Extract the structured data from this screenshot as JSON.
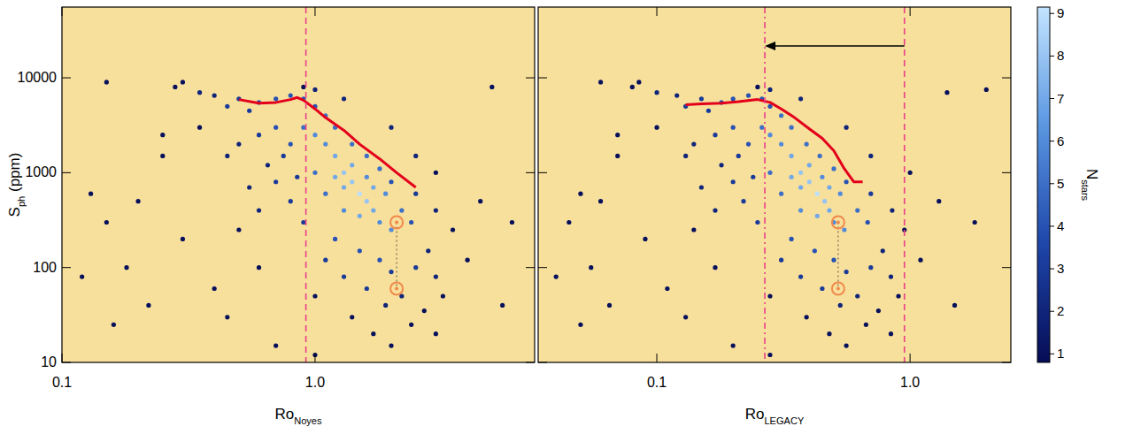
{
  "chart_data": [
    {
      "type": "scatter",
      "log": true,
      "tick_labels": true,
      "xlabel": {
        "main": "Ro",
        "sub": "Noyes"
      },
      "ylabel": {
        "main": "S",
        "sub": "ph",
        "rest": " (ppm)"
      },
      "xlim": [
        0.1,
        7.37
      ],
      "ylim": [
        10,
        55700
      ],
      "xticks": [
        {
          "value": 0.1,
          "label": "0.1"
        },
        {
          "value": 1,
          "label": "1.0"
        }
      ],
      "yticks": [
        10,
        100,
        1000,
        10000
      ],
      "series": [
        {
          "type": "scatter",
          "marker": "dot",
          "x": [
            0.35,
            0.4,
            0.45,
            0.5,
            0.55,
            0.6,
            0.7,
            0.8,
            0.9,
            1.0,
            1.1,
            1.2,
            1.4,
            1.6,
            1.8,
            2.0,
            2.5,
            3.0,
            1.2,
            1.3,
            1.4,
            1.5,
            1.3,
            1.6,
            1.7,
            1.5,
            1.8,
            2.0,
            1.1,
            1.0,
            0.9,
            1.2,
            1.4,
            1.6,
            1.9,
            2.2,
            2.4,
            1.7,
            1.3,
            1.1,
            1.0,
            0.8,
            0.7,
            0.6,
            0.5,
            0.45,
            1.2,
            1.5,
            1.8,
            2.0,
            2.5,
            1.3,
            1.6,
            2.2,
            1.9,
            2.8,
            3.0,
            1.4,
            2.4,
            1.7,
            1.1,
            0.9,
            0.8,
            0.7,
            0.6,
            0.5,
            3.5,
            4.0,
            3.2,
            2.7,
            1.0,
            0.2,
            0.15,
            0.12,
            0.25,
            0.3,
            0.13,
            0.18,
            0.22,
            0.3,
            0.35,
            0.4,
            0.15,
            0.28,
            5.0,
            4.5,
            5.5,
            0.16,
            0.7,
            1.0,
            6.0,
            0.45,
            0.25,
            2.0,
            3.0,
            0.6,
            0.55,
            0.65,
            0.75,
            0.85,
            1.0,
            1.3,
            0.9,
            2.0,
            2.5,
            3.0
          ],
          "values": [
            7000,
            6500,
            5000,
            6000,
            4500,
            5500,
            6000,
            6500,
            6000,
            5000,
            4000,
            3000,
            2000,
            1500,
            1100,
            800,
            600,
            400,
            1500,
            1000,
            800,
            600,
            700,
            500,
            400,
            350,
            300,
            250,
            2000,
            2500,
            3000,
            900,
            1200,
            900,
            600,
            400,
            300,
            700,
            400,
            600,
            1000,
            2000,
            3000,
            2500,
            2000,
            1500,
            200,
            150,
            120,
            90,
            100,
            80,
            60,
            50,
            40,
            150,
            80,
            30,
            25,
            20,
            120,
            300,
            500,
            800,
            400,
            250,
            250,
            120,
            50,
            35,
            50,
            500,
            300,
            80,
            1500,
            9000,
            600,
            100,
            40,
            200,
            3000,
            60,
            9000,
            8000,
            8000,
            500,
            40,
            25,
            15,
            12,
            300,
            30,
            2500,
            15,
            20,
            100,
            700,
            1200,
            1500,
            900,
            7500,
            6000,
            8000,
            3000,
            1500,
            1000
          ],
          "density": [
            2,
            2,
            3,
            3,
            3,
            4,
            4,
            4,
            4,
            4,
            5,
            5,
            5,
            5,
            5,
            4,
            3,
            2,
            7,
            8,
            8,
            9,
            7,
            8,
            7,
            7,
            6,
            6,
            6,
            6,
            5,
            7,
            7,
            6,
            6,
            5,
            4,
            7,
            6,
            5,
            5,
            4,
            4,
            3,
            2,
            2,
            4,
            4,
            4,
            3,
            3,
            3,
            3,
            2,
            2,
            2,
            2,
            1,
            1,
            1,
            3,
            3,
            3,
            3,
            2,
            1,
            1,
            1,
            1,
            1,
            1,
            1,
            1,
            1,
            1,
            1,
            1,
            1,
            1,
            1,
            1,
            1,
            1,
            1,
            1,
            1,
            1,
            1,
            1,
            1,
            1,
            1,
            1,
            1,
            1,
            1,
            2,
            2,
            3,
            3,
            2,
            2,
            1,
            2,
            2,
            1
          ]
        },
        {
          "type": "line",
          "color": "#e3001b",
          "x": [
            0.5,
            0.6,
            0.7,
            0.8,
            0.85,
            0.9,
            1.0,
            1.1,
            1.3,
            1.5,
            1.8,
            2.1,
            2.5
          ],
          "values": [
            5900,
            5400,
            5500,
            5900,
            6200,
            5800,
            4700,
            3800,
            2800,
            2000,
            1400,
            1000,
            700
          ]
        },
        {
          "type": "scatter",
          "marker": "circle-dot",
          "line_style": "dotted",
          "color": "#f08a4b",
          "x": [
            2.1,
            2.1
          ],
          "values": [
            300,
            60
          ]
        }
      ],
      "vlines": [
        {
          "value": 0.92,
          "line_style": "dashed",
          "color": "#e8408a"
        }
      ]
    },
    {
      "type": "scatter",
      "log": true,
      "tick_labels": "x",
      "xlabel": {
        "main": "Ro",
        "sub": "LEGACY"
      },
      "xlim": [
        0.034,
        2.5
      ],
      "ylim": [
        10,
        55700
      ],
      "xticks": [
        {
          "value": 0.1,
          "label": "0.1"
        },
        {
          "value": 1,
          "label": "1.0"
        }
      ],
      "yticks": [
        10,
        100,
        1000,
        10000
      ],
      "series": [
        {
          "type": "scatter",
          "marker": "dot",
          "x": [
            0.1,
            0.12,
            0.13,
            0.15,
            0.16,
            0.18,
            0.2,
            0.23,
            0.26,
            0.28,
            0.31,
            0.34,
            0.39,
            0.44,
            0.5,
            0.56,
            0.7,
            0.85,
            0.34,
            0.37,
            0.4,
            0.43,
            0.37,
            0.46,
            0.48,
            0.43,
            0.5,
            0.55,
            0.31,
            0.28,
            0.26,
            0.34,
            0.4,
            0.45,
            0.53,
            0.62,
            0.68,
            0.48,
            0.37,
            0.31,
            0.28,
            0.23,
            0.2,
            0.17,
            0.14,
            0.13,
            0.34,
            0.42,
            0.5,
            0.56,
            0.7,
            0.37,
            0.45,
            0.62,
            0.53,
            0.78,
            0.84,
            0.39,
            0.67,
            0.48,
            0.31,
            0.25,
            0.22,
            0.2,
            0.17,
            0.14,
            0.95,
            1.1,
            0.9,
            0.75,
            0.28,
            0.06,
            0.045,
            0.04,
            0.07,
            0.085,
            0.05,
            0.055,
            0.065,
            0.09,
            0.1,
            0.11,
            0.06,
            0.08,
            1.4,
            1.3,
            1.5,
            0.05,
            0.2,
            0.28,
            1.8,
            0.13,
            0.07,
            0.56,
            0.84,
            0.17,
            0.15,
            0.18,
            0.21,
            0.24,
            0.28,
            0.37,
            0.25,
            0.56,
            0.7,
            1.0,
            2.0
          ],
          "values": [
            7000,
            6500,
            5000,
            6000,
            4500,
            5500,
            6000,
            6500,
            6000,
            5000,
            4000,
            3000,
            2000,
            1500,
            1100,
            800,
            600,
            400,
            1500,
            1000,
            800,
            600,
            700,
            500,
            400,
            350,
            300,
            250,
            2000,
            2500,
            3000,
            900,
            1200,
            900,
            600,
            400,
            300,
            700,
            400,
            600,
            1000,
            2000,
            3000,
            2500,
            2000,
            1500,
            200,
            150,
            120,
            90,
            100,
            80,
            60,
            50,
            40,
            150,
            80,
            30,
            25,
            20,
            120,
            300,
            500,
            800,
            400,
            250,
            250,
            120,
            50,
            35,
            50,
            500,
            300,
            80,
            1500,
            9000,
            600,
            100,
            40,
            200,
            3000,
            60,
            9000,
            8000,
            7000,
            500,
            40,
            25,
            15,
            12,
            300,
            30,
            2500,
            15,
            20,
            100,
            700,
            1200,
            1500,
            900,
            7500,
            6000,
            8000,
            3000,
            1500,
            1000,
            7500
          ],
          "density": [
            2,
            2,
            3,
            3,
            3,
            4,
            4,
            4,
            4,
            4,
            5,
            5,
            5,
            5,
            5,
            4,
            3,
            2,
            7,
            8,
            8,
            9,
            7,
            8,
            7,
            7,
            6,
            6,
            6,
            6,
            5,
            7,
            7,
            6,
            6,
            5,
            4,
            7,
            6,
            5,
            5,
            4,
            4,
            3,
            2,
            2,
            4,
            4,
            4,
            3,
            3,
            3,
            3,
            2,
            2,
            2,
            2,
            1,
            1,
            1,
            3,
            3,
            3,
            3,
            2,
            1,
            1,
            1,
            1,
            1,
            1,
            1,
            1,
            1,
            1,
            1,
            1,
            1,
            1,
            1,
            1,
            1,
            1,
            1,
            1,
            1,
            1,
            1,
            1,
            1,
            1,
            1,
            1,
            1,
            1,
            1,
            2,
            2,
            3,
            3,
            2,
            2,
            1,
            2,
            2,
            1,
            1
          ]
        },
        {
          "type": "line",
          "color": "#e3001b",
          "x": [
            0.13,
            0.15,
            0.18,
            0.21,
            0.25,
            0.28,
            0.31,
            0.35,
            0.4,
            0.45,
            0.5,
            0.55,
            0.6,
            0.65
          ],
          "values": [
            5200,
            5300,
            5400,
            5600,
            5900,
            5500,
            4700,
            3800,
            2900,
            2300,
            1700,
            1100,
            800,
            800
          ]
        },
        {
          "type": "scatter",
          "marker": "circle-dot",
          "line_style": "dotted",
          "color": "#f08a4b",
          "x": [
            0.52,
            0.52
          ],
          "values": [
            300,
            60
          ]
        }
      ],
      "vlines": [
        {
          "value": 0.267,
          "line_style": "dashdot",
          "color": "#e8408a"
        },
        {
          "value": 0.95,
          "line_style": "dashed",
          "color": "#e8408a"
        }
      ],
      "arrow": {
        "x_from": 0.95,
        "x_to": 0.267
      },
      "colorbar": {
        "label": {
          "main": "N",
          "sub": "stars"
        },
        "range": [
          0.8,
          9.15
        ],
        "ticks": [
          1,
          2,
          3,
          4,
          5,
          6,
          7,
          8,
          9
        ]
      }
    }
  ]
}
